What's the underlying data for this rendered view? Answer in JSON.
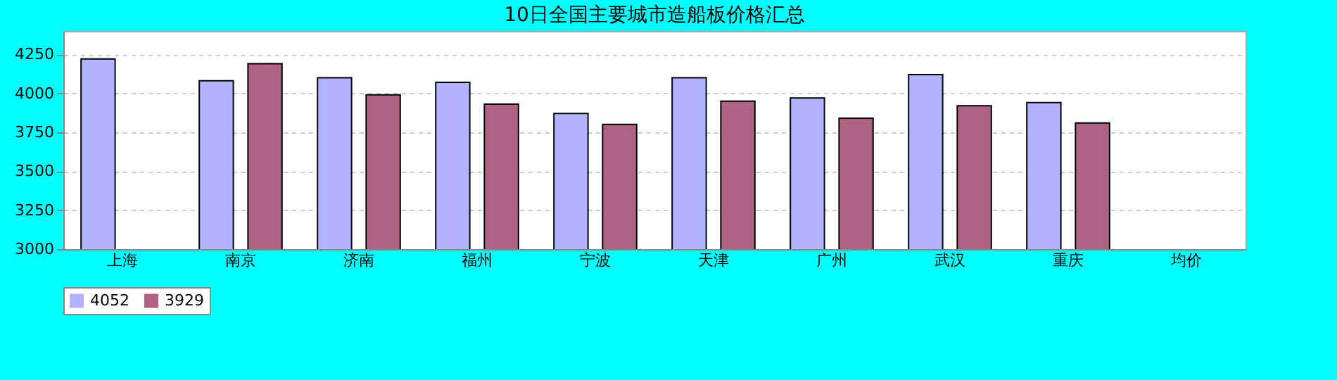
{
  "chart_data": {
    "type": "bar",
    "title": "10日全国主要城市造船板价格汇总",
    "categories": [
      "上海",
      "南京",
      "济南",
      "福州",
      "宁波",
      "天津",
      "广州",
      "武汉",
      "重庆",
      "均价"
    ],
    "series": [
      {
        "name": "4052",
        "color": "#b3b3ff",
        "values": [
          4220,
          4080,
          4100,
          4070,
          3870,
          4100,
          3970,
          4120,
          3940,
          null
        ]
      },
      {
        "name": "3929",
        "color": "#b06284",
        "values": [
          null,
          4190,
          3990,
          3930,
          3800,
          3950,
          3840,
          3920,
          3810,
          null
        ]
      }
    ],
    "ylim": [
      3000,
      4400
    ],
    "yticks": [
      3000,
      3250,
      3500,
      3750,
      4000,
      4250
    ],
    "grid": "y",
    "legend": "bottom"
  }
}
